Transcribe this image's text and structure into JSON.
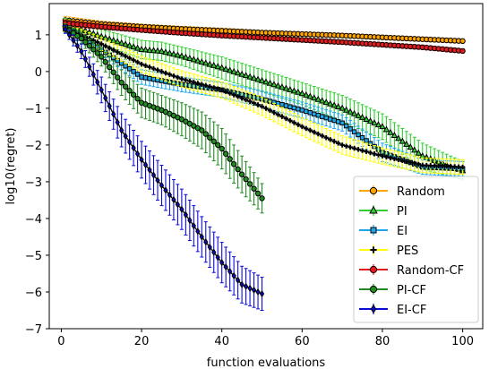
{
  "chart_data": {
    "type": "line",
    "xlabel": "function evaluations",
    "ylabel": "log10(regret)",
    "xlim": [
      -3,
      105
    ],
    "ylim": [
      -7,
      1.85
    ],
    "xticks": [
      0,
      20,
      40,
      60,
      80,
      100
    ],
    "yticks": [
      1,
      0,
      -1,
      -2,
      -3,
      -4,
      -5,
      -6,
      -7
    ],
    "grid": false,
    "legend_position": "lower-right",
    "series": [
      {
        "name": "Random",
        "color": "#ffa500",
        "marker": "circle",
        "x": [
          1,
          10,
          20,
          30,
          40,
          50,
          60,
          70,
          80,
          90,
          100
        ],
        "y": [
          1.4,
          1.29,
          1.22,
          1.16,
          1.11,
          1.06,
          1.02,
          0.98,
          0.93,
          0.88,
          0.83
        ],
        "err": [
          0.1,
          0.08,
          0.07,
          0.07,
          0.07,
          0.06,
          0.06,
          0.06,
          0.06,
          0.06,
          0.06
        ]
      },
      {
        "name": "PI",
        "color": "#32cd32",
        "marker": "triangle",
        "x": [
          1,
          10,
          20,
          25,
          30,
          40,
          50,
          60,
          70,
          80,
          90,
          100
        ],
        "y": [
          1.3,
          0.95,
          0.6,
          0.55,
          0.42,
          0.1,
          -0.25,
          -0.6,
          -1.0,
          -1.5,
          -2.3,
          -2.7
        ],
        "err": [
          0.15,
          0.2,
          0.25,
          0.25,
          0.25,
          0.3,
          0.3,
          0.3,
          0.35,
          0.35,
          0.35,
          0.25
        ]
      },
      {
        "name": "EI",
        "color": "#1ea7e8",
        "marker": "square",
        "x": [
          1,
          10,
          20,
          30,
          40,
          50,
          60,
          70,
          80,
          90,
          100
        ],
        "y": [
          1.15,
          0.6,
          -0.15,
          -0.35,
          -0.5,
          -0.75,
          -1.05,
          -1.4,
          -2.2,
          -2.6,
          -2.65
        ],
        "err": [
          0.12,
          0.15,
          0.2,
          0.2,
          0.2,
          0.22,
          0.22,
          0.22,
          0.25,
          0.2,
          0.2
        ]
      },
      {
        "name": "PES",
        "color": "#ffff00",
        "marker": "plus",
        "x": [
          1,
          10,
          20,
          30,
          40,
          50,
          60,
          70,
          80,
          90,
          100
        ],
        "y": [
          1.2,
          0.75,
          0.2,
          -0.2,
          -0.5,
          -0.95,
          -1.5,
          -2.0,
          -2.3,
          -2.55,
          -2.6
        ],
        "err": [
          0.12,
          0.18,
          0.22,
          0.22,
          0.22,
          0.25,
          0.25,
          0.25,
          0.22,
          0.2,
          0.2
        ]
      },
      {
        "name": "Random-CF",
        "color": "#e41a1c",
        "marker": "circle",
        "x": [
          1,
          10,
          20,
          30,
          40,
          50,
          60,
          70,
          80,
          90,
          100
        ],
        "y": [
          1.32,
          1.22,
          1.13,
          1.05,
          0.98,
          0.92,
          0.86,
          0.8,
          0.73,
          0.66,
          0.56
        ],
        "err": [
          0.08,
          0.07,
          0.06,
          0.06,
          0.06,
          0.06,
          0.06,
          0.06,
          0.06,
          0.06,
          0.06
        ]
      },
      {
        "name": "PI-CF",
        "color": "#228b22",
        "marker": "circle",
        "x": [
          1,
          5,
          10,
          15,
          20,
          25,
          30,
          35,
          40,
          45,
          50
        ],
        "y": [
          1.2,
          0.9,
          0.4,
          -0.3,
          -0.85,
          -1.05,
          -1.3,
          -1.6,
          -2.1,
          -2.8,
          -3.45
        ],
        "err": [
          0.1,
          0.15,
          0.25,
          0.35,
          0.4,
          0.4,
          0.45,
          0.5,
          0.55,
          0.5,
          0.4
        ]
      },
      {
        "name": "EI-CF",
        "color": "#0b0bd8",
        "marker": "diamond",
        "x": [
          1,
          5,
          10,
          15,
          20,
          25,
          30,
          35,
          40,
          45,
          50
        ],
        "y": [
          1.15,
          0.55,
          -0.5,
          -1.6,
          -2.4,
          -3.1,
          -3.75,
          -4.5,
          -5.2,
          -5.8,
          -6.05
        ],
        "err": [
          0.1,
          0.2,
          0.35,
          0.45,
          0.5,
          0.55,
          0.55,
          0.55,
          0.55,
          0.5,
          0.45
        ]
      }
    ]
  }
}
